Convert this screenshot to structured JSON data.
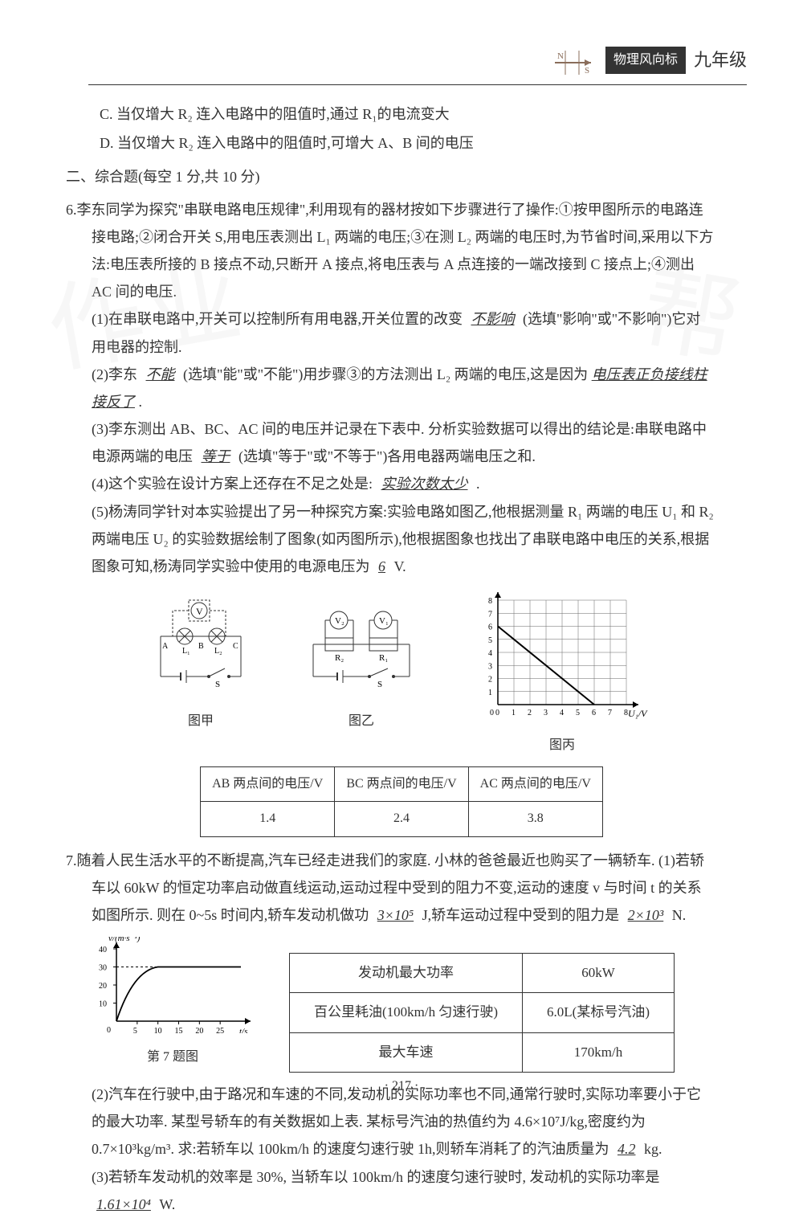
{
  "header": {
    "badge": "物理风向标",
    "grade": "九年级"
  },
  "options": {
    "c": "C. 当仅增大 R₂ 连入电路中的阻值时,通过 R₁的电流变大",
    "d": "D. 当仅增大 R₂ 连入电路中的阻值时,可增大 A、B 间的电压"
  },
  "section2": {
    "title": "二、综合题(每空 1 分,共 10 分)"
  },
  "q6": {
    "num": "6.",
    "intro": "李东同学为探究\"串联电路电压规律\",利用现有的器材按如下步骤进行了操作:①按甲图所示的电路连接电路;②闭合开关 S,用电压表测出 L₁ 两端的电压;③在测 L₂ 两端的电压时,为节省时间,采用以下方法:电压表所接的 B 接点不动,只断开 A 接点,将电压表与 A 点连接的一端改接到 C 接点上;④测出 AC 间的电压.",
    "p1_a": "(1)在串联电路中,开关可以控制所有用电器,开关位置的改变",
    "p1_ans": "不影响",
    "p1_b": "(选填\"影响\"或\"不影响\")它对用电器的控制.",
    "p2_a": "(2)李东",
    "p2_ans1": "不能",
    "p2_b": "(选填\"能\"或\"不能\")用步骤③的方法测出 L₂ 两端的电压,这是因为",
    "p2_ans2": "电压表正负接线柱接反了",
    "p2_c": ".",
    "p3_a": "(3)李东测出 AB、BC、AC 间的电压并记录在下表中. 分析实验数据可以得出的结论是:串联电路中电源两端的电压",
    "p3_ans": "等于",
    "p3_b": "(选填\"等于\"或\"不等于\")各用电器两端电压之和.",
    "p4_a": "(4)这个实验在设计方案上还存在不足之处是:",
    "p4_ans": "实验次数太少",
    "p4_b": ".",
    "p5_a": "(5)杨涛同学针对本实验提出了另一种探究方案:实验电路如图乙,他根据测量 R₁ 两端的电压 U₁ 和 R₂ 两端电压 U₂ 的实验数据绘制了图象(如丙图所示),他根据图象也找出了串联电路中电压的关系,根据图象可知,杨涛同学实验中使用的电源电压为",
    "p5_ans": "6",
    "p5_b": "V.",
    "diagram_labels": {
      "jia": "图甲",
      "yi": "图乙",
      "bing": "图丙"
    },
    "table": {
      "h1": "AB 两点间的电压/V",
      "h2": "BC 两点间的电压/V",
      "h3": "AC 两点间的电压/V",
      "v1": "1.4",
      "v2": "2.4",
      "v3": "3.8"
    },
    "chart_bing": {
      "type": "line",
      "xlabel": "U₁/V",
      "ylabel": "U₂/V",
      "xlim": [
        0,
        8
      ],
      "ylim": [
        0,
        8
      ],
      "xticks": [
        0,
        1,
        2,
        3,
        4,
        5,
        6,
        7,
        8
      ],
      "yticks": [
        1,
        2,
        3,
        4,
        5,
        6,
        7,
        8
      ],
      "line_points": [
        [
          0,
          6
        ],
        [
          6,
          0
        ]
      ],
      "grid_color": "#666666",
      "line_color": "#000000",
      "background_color": "#ffffff"
    }
  },
  "q7": {
    "num": "7.",
    "intro_a": "随着人民生活水平的不断提高,汽车已经走进我们的家庭. 小林的爸爸最近也购买了一辆轿车. (1)若轿车以 60kW 的恒定功率启动做直线运动,运动过程中受到的阻力不变,运动的速度 v 与时间 t 的关系如图所示. 则在 0~5s 时间内,轿车发动机做功",
    "intro_ans1": "3×10⁵",
    "intro_b": "J,轿车运动过程中受到的阻力是",
    "intro_ans2": "2×10³",
    "intro_c": "N.",
    "graph_label": "第 7 题图",
    "graph": {
      "type": "line",
      "xlabel": "t/s",
      "ylabel": "v/(m·s⁻¹)",
      "xlim": [
        0,
        30
      ],
      "ylim": [
        0,
        40
      ],
      "xticks": [
        5,
        10,
        15,
        20,
        25
      ],
      "yticks": [
        10,
        20,
        30,
        40
      ],
      "curve": "rises from 0 to 30 at t=10 then flat"
    },
    "table": {
      "r1c1": "发动机最大功率",
      "r1c2": "60kW",
      "r2c1": "百公里耗油(100km/h 匀速行驶)",
      "r2c2": "6.0L(某标号汽油)",
      "r3c1": "最大车速",
      "r3c2": "170km/h"
    },
    "p2_a": "(2)汽车在行驶中,由于路况和车速的不同,发动机的实际功率也不同,通常行驶时,实际功率要小于它的最大功率. 某型号轿车的有关数据如上表. 某标号汽油的热值约为 4.6×10⁷J/kg,密度约为 0.7×10³kg/m³. 求:若轿车以 100km/h 的速度匀速行驶 1h,则轿车消耗了的汽油质量为",
    "p2_ans": "4.2",
    "p2_b": "kg.",
    "p3_a": "(3)若轿车发动机的效率是 30%, 当轿车以 100km/h 的速度匀速行驶时, 发动机的实际功率是",
    "p3_ans": "1.61×10⁴",
    "p3_b": "W."
  },
  "page_num": "· 217 ·"
}
